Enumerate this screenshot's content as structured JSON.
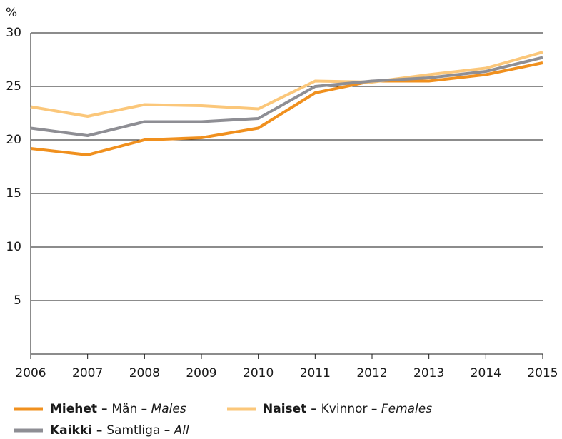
{
  "chart_data": {
    "type": "line",
    "y_label": "%",
    "x": [
      2006,
      2007,
      2008,
      2009,
      2010,
      2011,
      2012,
      2013,
      2014,
      2015
    ],
    "xlim": [
      2006,
      2015
    ],
    "xticks": [
      2006,
      2007,
      2008,
      2009,
      2010,
      2011,
      2012,
      2013,
      2014,
      2015
    ],
    "ylim": [
      0,
      30
    ],
    "yticks": [
      5,
      10,
      15,
      20,
      25,
      30
    ],
    "grid": true,
    "series": [
      {
        "name": "Miehet – Män – Males",
        "color": "#f0901e",
        "values": [
          19.2,
          18.6,
          20.0,
          20.2,
          21.1,
          24.4,
          25.5,
          25.5,
          26.1,
          27.2
        ]
      },
      {
        "name": "Naiset – Kvinnor – Females",
        "color": "#fbc77a",
        "values": [
          23.1,
          22.2,
          23.3,
          23.2,
          22.9,
          25.5,
          25.4,
          26.1,
          26.7,
          28.2
        ]
      },
      {
        "name": "Kaikki – Samtliga – All",
        "color": "#8e8e94",
        "values": [
          21.1,
          20.4,
          21.7,
          21.7,
          22.0,
          25.0,
          25.5,
          25.8,
          26.4,
          27.7
        ]
      }
    ]
  }
}
